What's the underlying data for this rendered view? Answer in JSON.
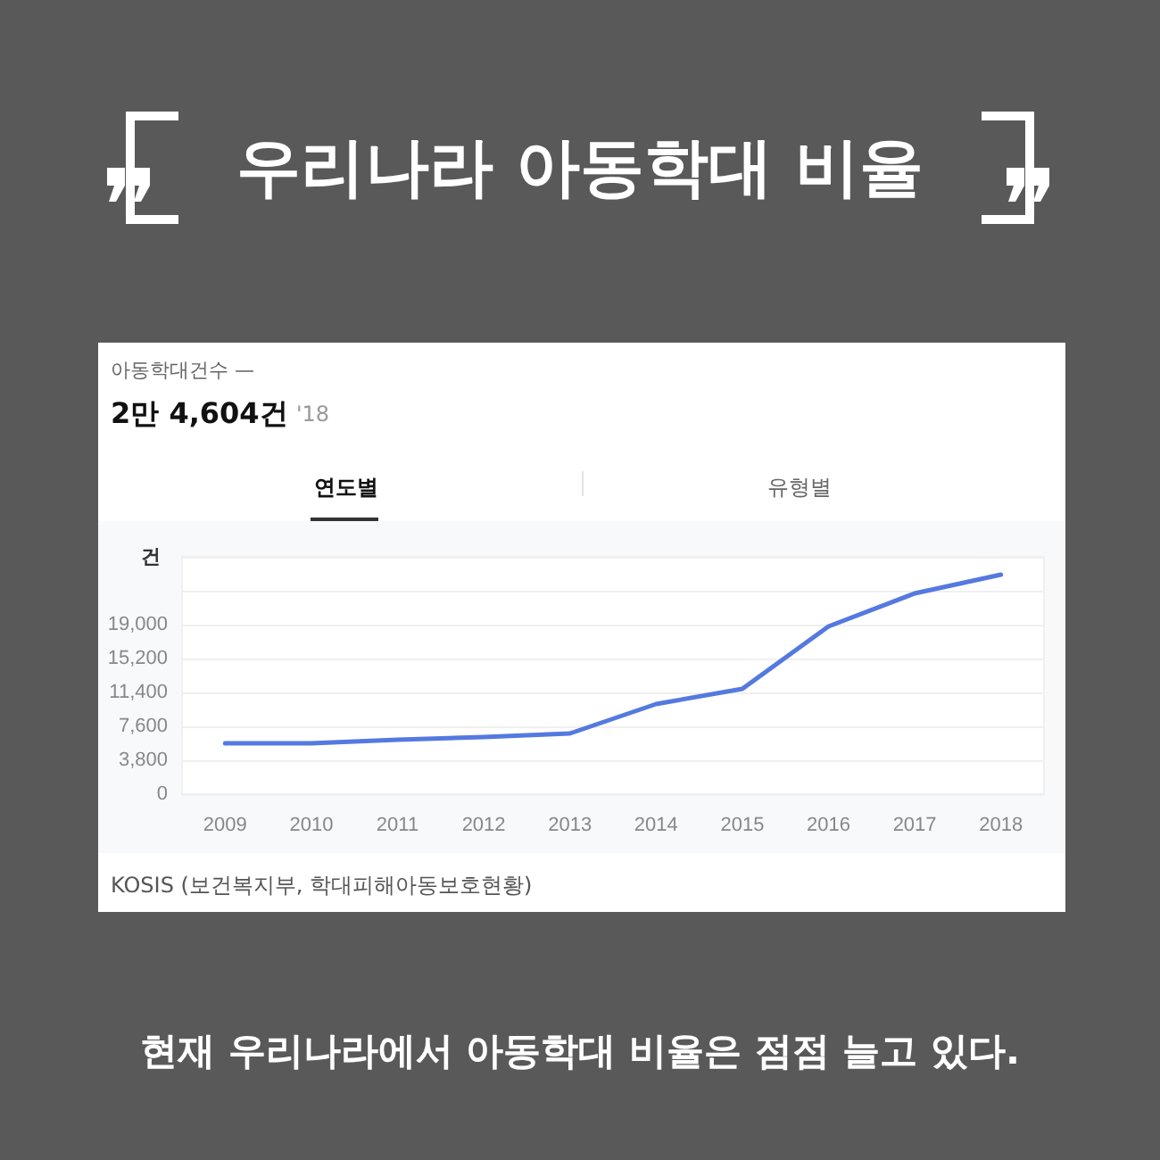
{
  "chart_data": {
    "type": "line",
    "title": "우리나라 아동학대 비율",
    "ylabel": "건",
    "annotations": [
      "아동학대건수 —",
      "2만 4,604건",
      "'18",
      "연도별",
      "유형별",
      "KOSIS (보건복지부, 학대피해아동보호현황)",
      "현재 우리나라에서 아동학대 비율은 점점 늘고 있다."
    ],
    "categories": [
      "2009",
      "2010",
      "2011",
      "2012",
      "2013",
      "2014",
      "2015",
      "2016",
      "2017",
      "2018"
    ],
    "series": [
      {
        "color": "#5479e0",
        "values": [
          5700,
          5700,
          6100,
          6400,
          6800,
          10100,
          11800,
          18800,
          22500,
          24600
        ]
      }
    ],
    "ylim": [
      0,
      26600
    ],
    "yticks": [
      {
        "value": 0,
        "label": "0"
      },
      {
        "value": 3800,
        "label": "3,800"
      },
      {
        "value": 7600,
        "label": "7,600"
      },
      {
        "value": 11400,
        "label": "11,400"
      },
      {
        "value": 15200,
        "label": "15,200"
      },
      {
        "value": 19000,
        "label": "19,000"
      },
      {
        "value": 22800,
        "label": null
      },
      {
        "value": 26600,
        "label": null
      }
    ],
    "grid": "y",
    "marker": "none",
    "line_style": "solid"
  }
}
